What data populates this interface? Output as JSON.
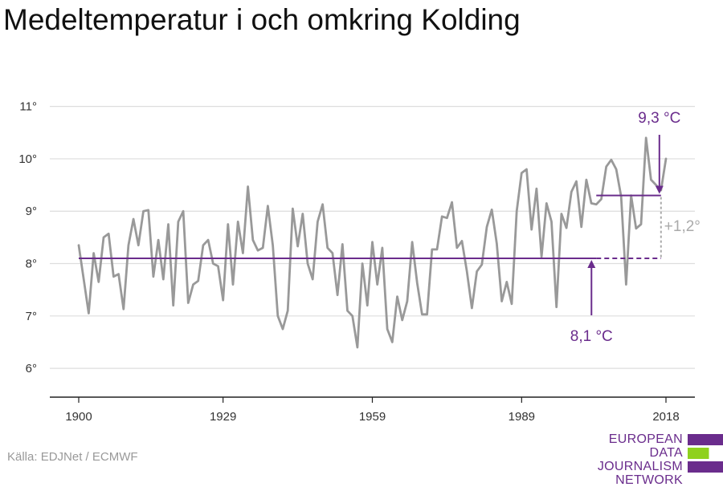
{
  "title": "Medeltemperatur i och omkring Kolding",
  "source": "Källa: EDJNet / ECMWF",
  "logo": {
    "lines": [
      "EUROPEAN",
      "DATA JOURNALISM",
      "NETWORK"
    ],
    "colors": {
      "purple": "#6a2c8c",
      "green": "#8fd11e"
    }
  },
  "chart_data": {
    "type": "line",
    "x_ticks": [
      1900,
      1929,
      1959,
      1989,
      2018
    ],
    "y_ticks": [
      6,
      7,
      8,
      9,
      10,
      11
    ],
    "y_tick_suffix": "°",
    "xlim": [
      1900,
      2018
    ],
    "ylim": [
      5.45,
      11.5
    ],
    "grid": true,
    "series": [
      {
        "color": "#999999",
        "x": [
          1900,
          1901,
          1902,
          1903,
          1904,
          1905,
          1906,
          1907,
          1908,
          1909,
          1910,
          1911,
          1912,
          1913,
          1914,
          1915,
          1916,
          1917,
          1918,
          1919,
          1920,
          1921,
          1922,
          1923,
          1924,
          1925,
          1926,
          1927,
          1928,
          1929,
          1930,
          1931,
          1932,
          1933,
          1934,
          1935,
          1936,
          1937,
          1938,
          1939,
          1940,
          1941,
          1942,
          1943,
          1944,
          1945,
          1946,
          1947,
          1948,
          1949,
          1950,
          1951,
          1952,
          1953,
          1954,
          1955,
          1956,
          1957,
          1958,
          1959,
          1960,
          1961,
          1962,
          1963,
          1964,
          1965,
          1966,
          1967,
          1968,
          1969,
          1970,
          1971,
          1972,
          1973,
          1974,
          1975,
          1976,
          1977,
          1978,
          1979,
          1980,
          1981,
          1982,
          1983,
          1984,
          1985,
          1986,
          1987,
          1988,
          1989,
          1990,
          1991,
          1992,
          1993,
          1994,
          1995,
          1996,
          1997,
          1998,
          1999,
          2000,
          2001,
          2002,
          2003,
          2004,
          2005,
          2006,
          2007,
          2008,
          2009,
          2010,
          2011,
          2012,
          2013,
          2014,
          2015,
          2016,
          2017,
          2018
        ],
        "y": [
          8.35,
          7.7,
          7.05,
          8.2,
          7.65,
          8.5,
          8.57,
          7.75,
          7.8,
          7.13,
          8.35,
          8.85,
          8.35,
          9.0,
          9.02,
          7.75,
          8.45,
          7.7,
          8.75,
          7.2,
          8.8,
          9.0,
          7.25,
          7.6,
          7.67,
          8.35,
          8.45,
          8.0,
          7.95,
          7.3,
          8.75,
          7.6,
          8.8,
          8.2,
          9.47,
          8.45,
          8.25,
          8.3,
          9.1,
          8.35,
          7.0,
          6.75,
          7.1,
          9.05,
          8.33,
          8.95,
          8.0,
          7.7,
          8.8,
          9.13,
          8.3,
          8.2,
          7.4,
          8.37,
          7.1,
          7.0,
          6.4,
          8.0,
          7.2,
          8.41,
          7.6,
          8.3,
          6.75,
          6.5,
          7.37,
          6.92,
          7.28,
          8.41,
          7.63,
          7.03,
          7.03,
          8.27,
          8.27,
          8.9,
          8.87,
          9.17,
          8.3,
          8.43,
          7.85,
          7.15,
          7.85,
          7.98,
          8.7,
          9.03,
          8.38,
          7.28,
          7.65,
          7.23,
          9.0,
          9.73,
          9.8,
          8.65,
          9.43,
          8.13,
          9.15,
          8.8,
          7.17,
          8.95,
          8.68,
          9.37,
          9.57,
          8.7,
          9.6,
          9.15,
          9.13,
          9.23,
          9.85,
          9.98,
          9.8,
          9.28,
          7.6,
          9.3,
          8.67,
          8.75,
          10.4,
          9.6,
          9.5,
          9.4,
          10.0
        ]
      }
    ],
    "baseline": {
      "value": 8.1,
      "label": "8,1 °C",
      "color": "#6a2c8c",
      "solid_to": 2004,
      "dashed_to": 2017
    },
    "recent": {
      "value": 9.3,
      "label": "9,3 °C",
      "color": "#6a2c8c",
      "from": 2004,
      "to": 2017
    },
    "difference": {
      "label": "+1,2°",
      "color": "#aaaaaa",
      "x": 2017
    }
  }
}
